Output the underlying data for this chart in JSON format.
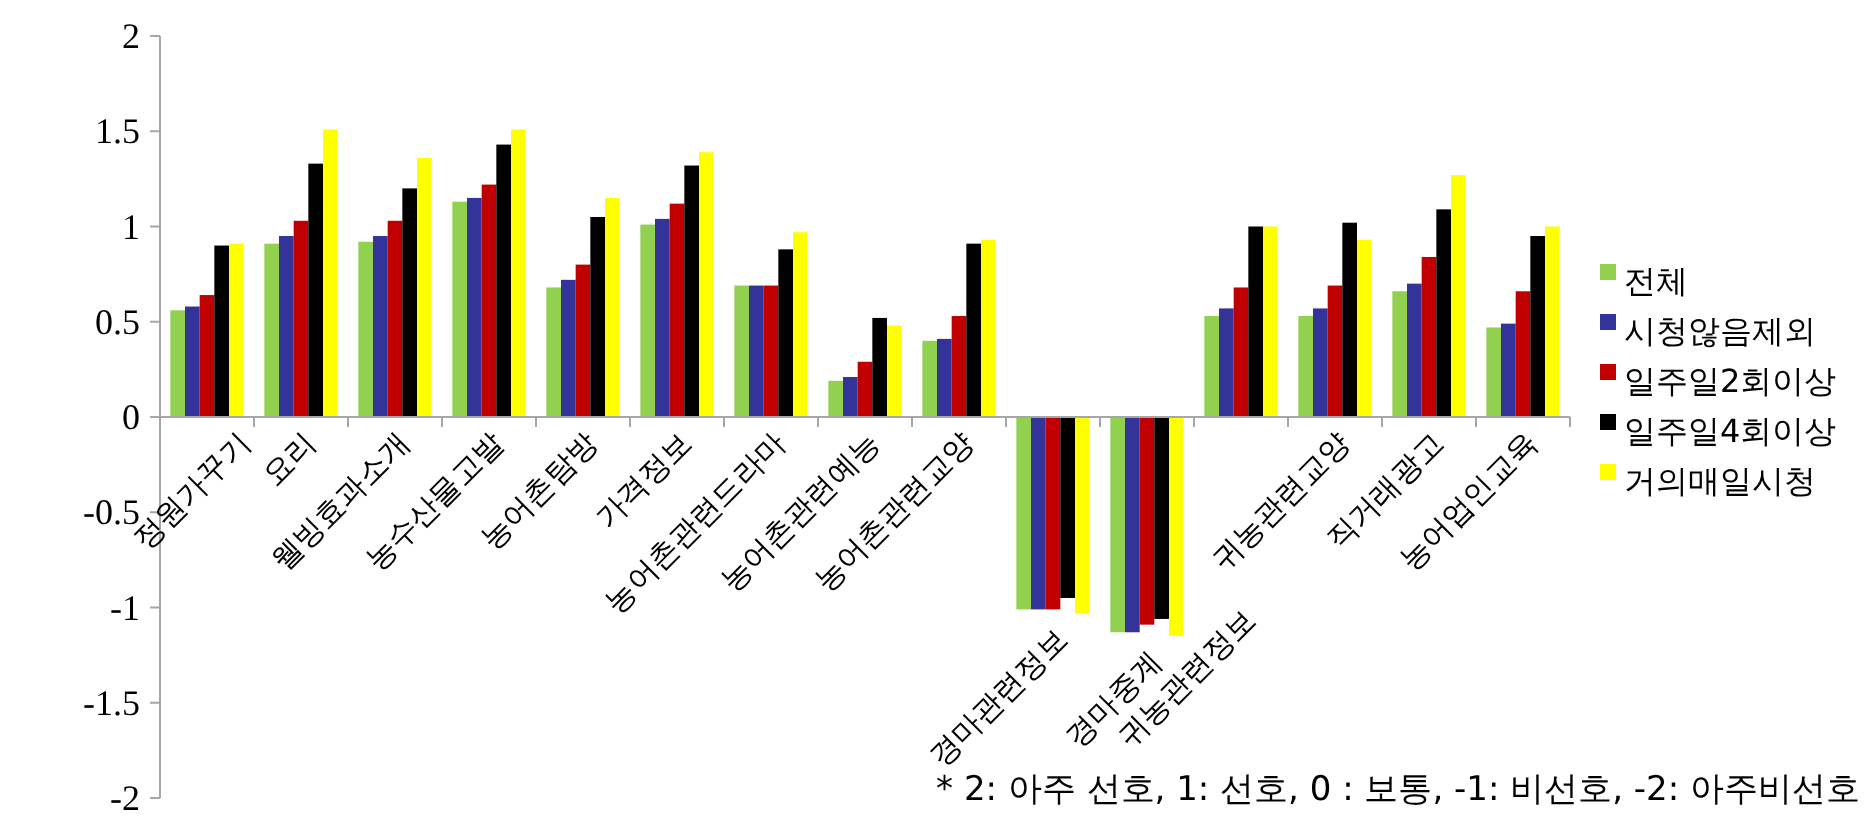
{
  "chart_data": {
    "type": "bar",
    "categories": [
      "정원가꾸기",
      "요리",
      "웰빙효과소개",
      "농수산물고발",
      "농어촌탐방",
      "가격정보",
      "농어촌관련드라마",
      "농어촌관련예능",
      "농어촌관련교양",
      "경마관련정보",
      "경마중계",
      "귀농관련정보",
      "귀농관련교양",
      "직거래광고",
      "농어업인교육"
    ],
    "series": [
      {
        "name": "전체",
        "color": "#92d050",
        "values": [
          0.56,
          0.91,
          0.92,
          1.13,
          0.68,
          1.01,
          0.69,
          0.19,
          0.4,
          -1.01,
          -1.13,
          0.53,
          0.53,
          0.66,
          0.47
        ]
      },
      {
        "name": "시청않음제외",
        "color": "#333399",
        "values": [
          0.58,
          0.95,
          0.95,
          1.15,
          0.72,
          1.04,
          0.69,
          0.21,
          0.41,
          -1.01,
          -1.13,
          0.57,
          0.57,
          0.7,
          0.49
        ]
      },
      {
        "name": "일주일2회이상",
        "color": "#c00000",
        "values": [
          0.64,
          1.03,
          1.03,
          1.22,
          0.8,
          1.12,
          0.69,
          0.29,
          0.53,
          -1.01,
          -1.09,
          0.68,
          0.69,
          0.84,
          0.66
        ]
      },
      {
        "name": "일주일4회이상",
        "color": "#000000",
        "values": [
          0.9,
          1.33,
          1.2,
          1.43,
          1.05,
          1.32,
          0.88,
          0.52,
          0.91,
          -0.95,
          -1.06,
          1.0,
          1.02,
          1.09,
          0.95
        ]
      },
      {
        "name": "거의매일시청",
        "color": "#ffff00",
        "values": [
          0.91,
          1.51,
          1.36,
          1.51,
          1.15,
          1.39,
          0.97,
          0.48,
          0.93,
          -1.03,
          -1.15,
          1.0,
          0.93,
          1.27,
          1.0
        ]
      }
    ],
    "ylim": [
      -2,
      2
    ],
    "yticks": [
      -2,
      -1.5,
      -1,
      -0.5,
      0,
      0.5,
      1,
      1.5,
      2
    ],
    "grid": false,
    "legend": "right",
    "annotations": [
      "* 2: 아주 선호, 1: 선호, 0 : 보통, -1: 비선호, -2: 아주비선호"
    ]
  }
}
